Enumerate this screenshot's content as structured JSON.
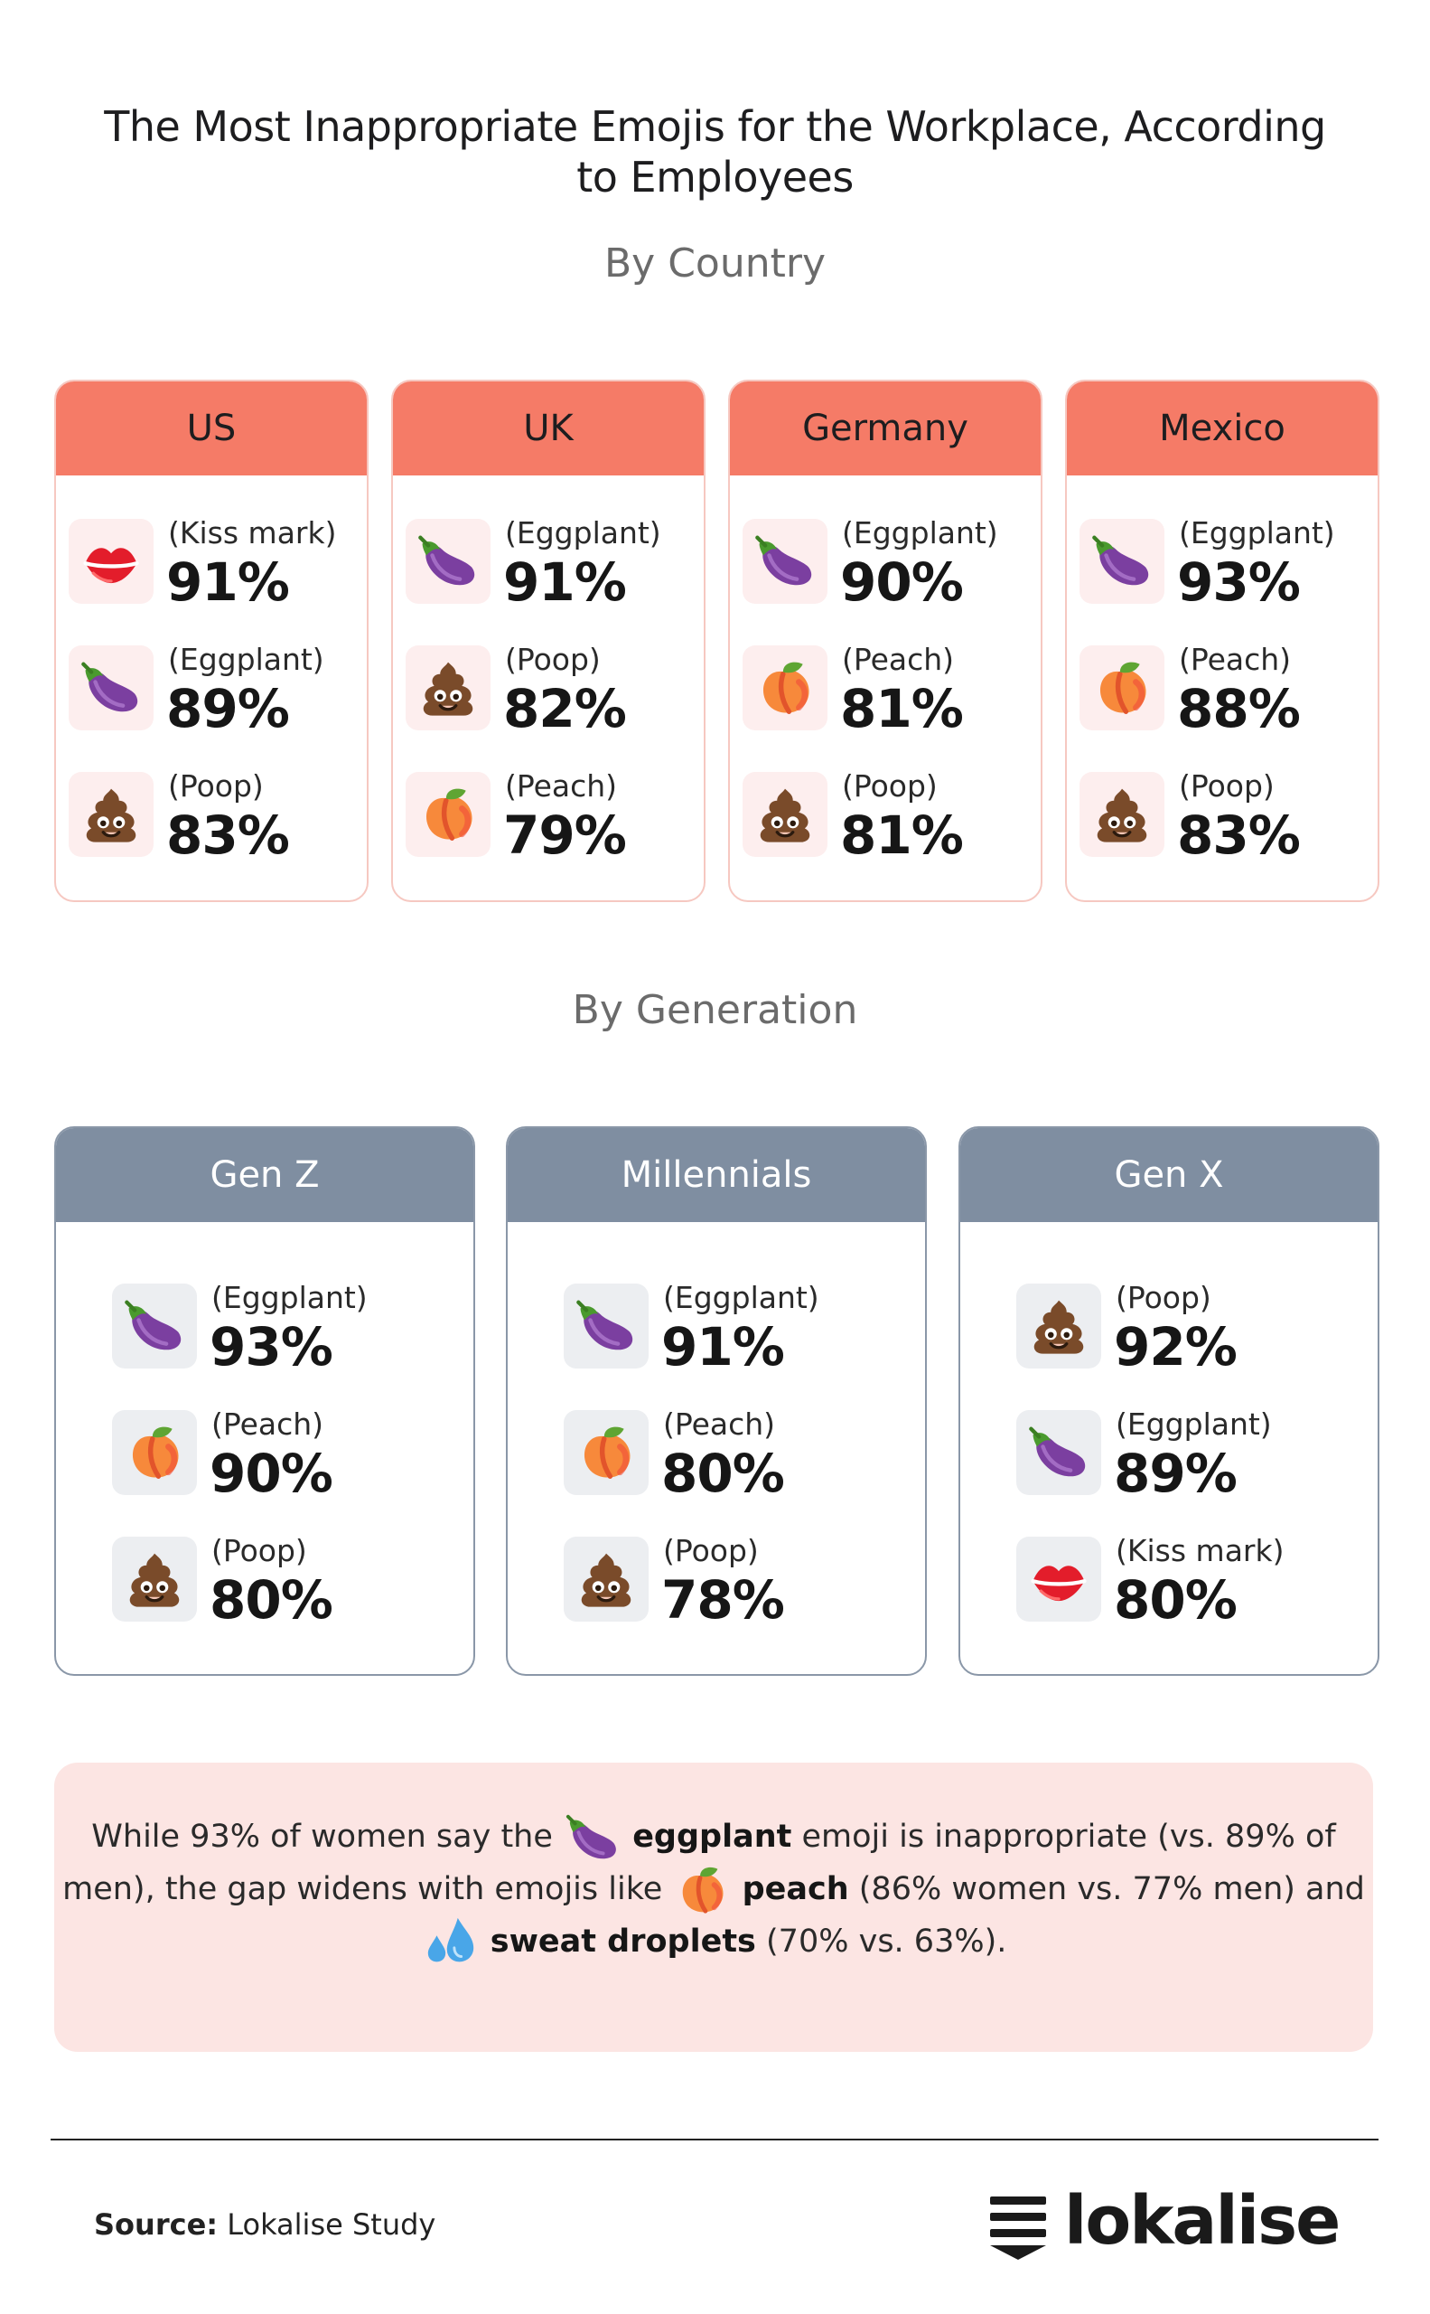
{
  "title_line1": "The Most Inappropriate Emojis for the Workplace, According",
  "title_line2": "to Employees",
  "by_country_heading": "By Country",
  "by_generation_heading": "By Generation",
  "colors": {
    "country_header": "#f57b67",
    "country_border": "#f6c8c1",
    "generation_header": "#7f8ea1",
    "note_background": "#fce5e3"
  },
  "countries": [
    {
      "name": "US",
      "items": [
        {
          "icon": "kiss-mark-icon",
          "label": "(Kiss mark)",
          "value": "91%"
        },
        {
          "icon": "eggplant-icon",
          "label": "(Eggplant)",
          "value": "89%"
        },
        {
          "icon": "poop-icon",
          "label": "(Poop)",
          "value": "83%"
        }
      ]
    },
    {
      "name": "UK",
      "items": [
        {
          "icon": "eggplant-icon",
          "label": "(Eggplant)",
          "value": "91%"
        },
        {
          "icon": "poop-icon",
          "label": "(Poop)",
          "value": "82%"
        },
        {
          "icon": "peach-icon",
          "label": "(Peach)",
          "value": "79%"
        }
      ]
    },
    {
      "name": "Germany",
      "items": [
        {
          "icon": "eggplant-icon",
          "label": "(Eggplant)",
          "value": "90%"
        },
        {
          "icon": "peach-icon",
          "label": "(Peach)",
          "value": "81%"
        },
        {
          "icon": "poop-icon",
          "label": "(Poop)",
          "value": "81%"
        }
      ]
    },
    {
      "name": "Mexico",
      "items": [
        {
          "icon": "eggplant-icon",
          "label": "(Eggplant)",
          "value": "93%"
        },
        {
          "icon": "peach-icon",
          "label": "(Peach)",
          "value": "88%"
        },
        {
          "icon": "poop-icon",
          "label": "(Poop)",
          "value": "83%"
        }
      ]
    }
  ],
  "generations": [
    {
      "name": "Gen Z",
      "items": [
        {
          "icon": "eggplant-icon",
          "label": "(Eggplant)",
          "value": "93%"
        },
        {
          "icon": "peach-icon",
          "label": "(Peach)",
          "value": "90%"
        },
        {
          "icon": "poop-icon",
          "label": "(Poop)",
          "value": "80%"
        }
      ]
    },
    {
      "name": "Millennials",
      "items": [
        {
          "icon": "eggplant-icon",
          "label": "(Eggplant)",
          "value": "91%"
        },
        {
          "icon": "peach-icon",
          "label": "(Peach)",
          "value": "80%"
        },
        {
          "icon": "poop-icon",
          "label": "(Poop)",
          "value": "78%"
        }
      ]
    },
    {
      "name": "Gen X",
      "items": [
        {
          "icon": "poop-icon",
          "label": "(Poop)",
          "value": "92%"
        },
        {
          "icon": "eggplant-icon",
          "label": "(Eggplant)",
          "value": "89%"
        },
        {
          "icon": "kiss-mark-icon",
          "label": "(Kiss mark)",
          "value": "80%"
        }
      ]
    }
  ],
  "note": {
    "line1_a": "While 93% of women say the",
    "line1_bold": "eggplant",
    "line1_b": "emoji is inappropriate (vs. 89% of",
    "line2_a": "men), the gap widens with emojis like",
    "line2_bold": "peach",
    "line2_b": "(86% women vs. 77% men) and",
    "line3_bold": "sweat droplets",
    "line3_b": "(70% vs. 63%)."
  },
  "source_label": "Source:",
  "source_text": "Lokalise Study",
  "logo_text": "lokalise"
}
